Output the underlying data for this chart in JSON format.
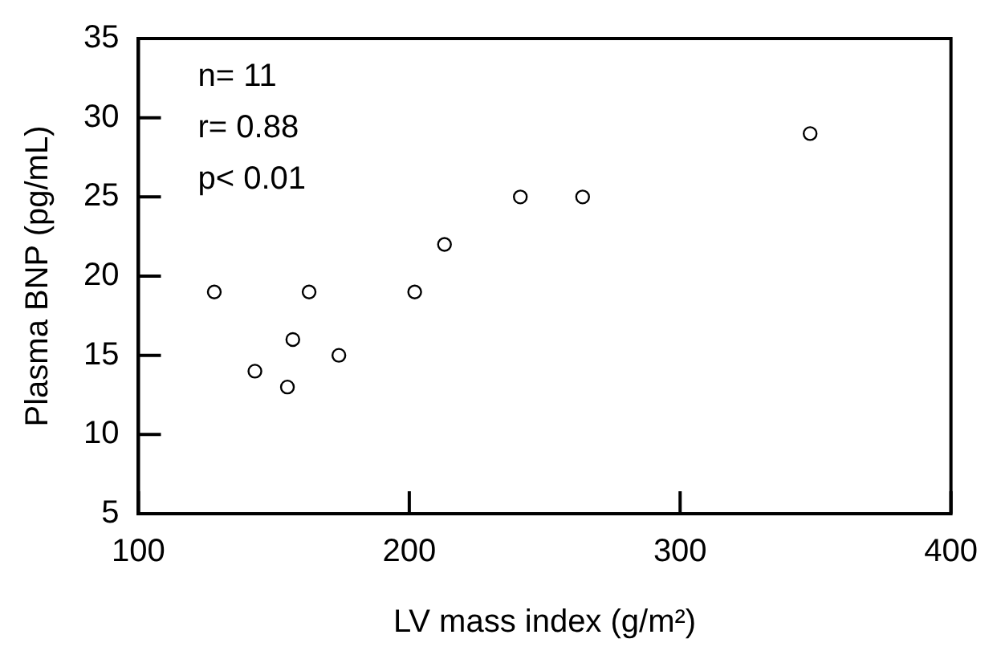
{
  "chart_data": {
    "type": "scatter",
    "xlabel": "LV mass index (g/m²)",
    "ylabel": "Plasma BNP (pg/mL)",
    "x": [
      128,
      163,
      157,
      143,
      155,
      174,
      202,
      213,
      241,
      264,
      348
    ],
    "values": [
      19,
      19,
      16,
      14,
      13,
      15,
      19,
      22,
      25,
      25,
      29
    ],
    "color": "#000000",
    "marker": "circle",
    "xlim": [
      100,
      400
    ],
    "xticks": [
      100,
      200,
      300,
      400
    ],
    "ylim": [
      5,
      35
    ],
    "yticks": [
      5,
      10,
      15,
      20,
      25,
      30,
      35
    ],
    "grid": false,
    "legend": false,
    "annotations": [
      "n= 11",
      "r= 0.88",
      "p< 0.01"
    ]
  }
}
